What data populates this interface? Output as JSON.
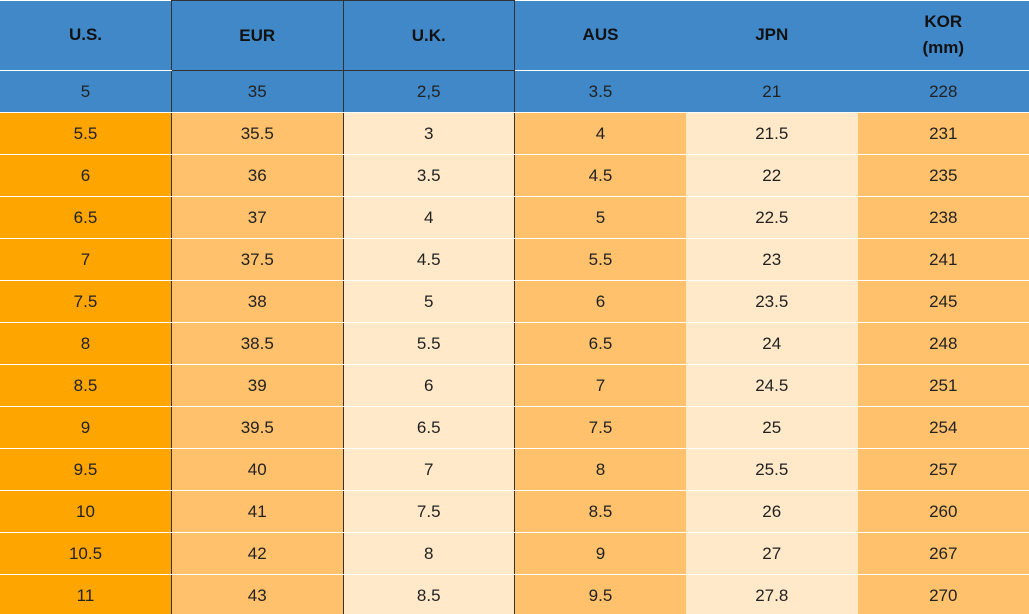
{
  "table": {
    "header": [
      "U.S.",
      "EUR",
      "U.K.",
      "AUS",
      "JPN",
      "KOR (mm)"
    ],
    "rows": [
      [
        "5",
        "35",
        "2,5",
        "3.5",
        "21",
        "228"
      ],
      [
        "5.5",
        "35.5",
        "3",
        "4",
        "21.5",
        "231"
      ],
      [
        "6",
        "36",
        "3.5",
        "4.5",
        "22",
        "235"
      ],
      [
        "6.5",
        "37",
        "4",
        "5",
        "22.5",
        "238"
      ],
      [
        "7",
        "37.5",
        "4.5",
        "5.5",
        "23",
        "241"
      ],
      [
        "7.5",
        "38",
        "5",
        "6",
        "23.5",
        "245"
      ],
      [
        "8",
        "38.5",
        "5.5",
        "6.5",
        "24",
        "248"
      ],
      [
        "8.5",
        "39",
        "6",
        "7",
        "24.5",
        "251"
      ],
      [
        "9",
        "39.5",
        "6.5",
        "7.5",
        "25",
        "254"
      ],
      [
        "9.5",
        "40",
        "7",
        "8",
        "25.5",
        "257"
      ],
      [
        "10",
        "41",
        "7.5",
        "8.5",
        "26",
        "260"
      ],
      [
        "10.5",
        "42",
        "8",
        "9",
        "27",
        "267"
      ],
      [
        "11",
        "43",
        "8.5",
        "9.5",
        "27.8",
        "270"
      ]
    ]
  }
}
